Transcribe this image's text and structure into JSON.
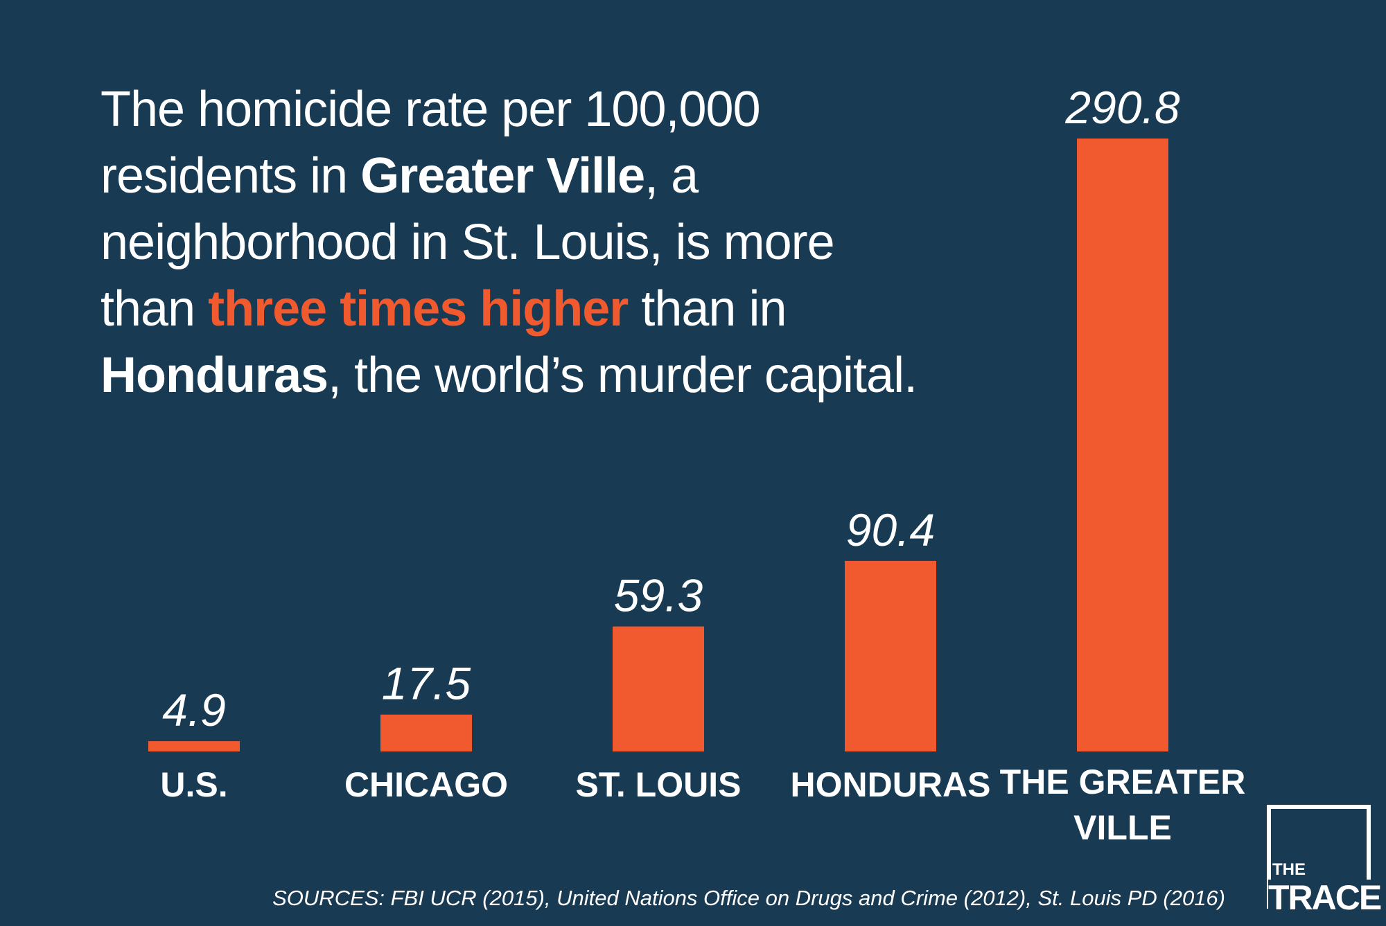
{
  "headline": {
    "l1": "The homicide rate per 100,000",
    "l2_a": "residents in ",
    "l2_b": "Greater Ville",
    "l2_c": ", a",
    "l3": "neighborhood in St. Louis, is more",
    "l4_a": "than ",
    "l4_b": "three times higher",
    "l4_c": " than in",
    "l5_a": "Honduras",
    "l5_b": ", the world’s murder capital."
  },
  "colors": {
    "background": "#183a52",
    "bar": "#f15a2f",
    "text": "#ffffff",
    "highlight": "#f15a2f"
  },
  "chart_data": {
    "type": "bar",
    "categories": [
      "U.S.",
      "CHICAGO",
      "ST. LOUIS",
      "HONDURAS",
      "THE GREATER VILLE"
    ],
    "values": [
      4.9,
      17.5,
      59.3,
      90.4,
      290.8
    ],
    "value_labels": [
      "4.9",
      "17.5",
      "59.3",
      "90.4",
      "290.8"
    ],
    "title": "",
    "xlabel": "",
    "ylabel": "",
    "ylim": [
      0,
      290.8
    ],
    "grid": false,
    "legend": "none"
  },
  "source": "SOURCES: FBI UCR (2015), United Nations Office on Drugs and Crime (2012), St. Louis PD (2016)",
  "logo": {
    "the": "THE",
    "trace": "TRACE"
  }
}
